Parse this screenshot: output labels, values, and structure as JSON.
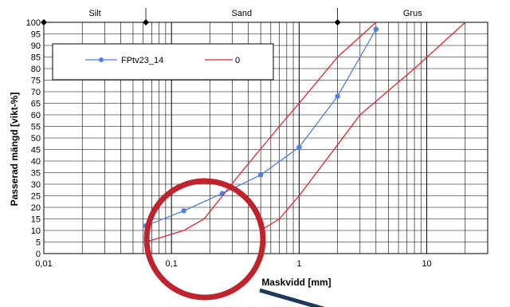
{
  "chart_data": {
    "type": "line",
    "x_scale": "log",
    "xlim": [
      0.01,
      30
    ],
    "ylim": [
      0,
      100
    ],
    "xlabel": "Maskvidd [mm]",
    "ylabel": "Passerad mängd [vikt-%]",
    "x_tick_labels": [
      {
        "value": 0.01,
        "label": "0,01"
      },
      {
        "value": 0.1,
        "label": "0,1"
      },
      {
        "value": 1,
        "label": "1"
      },
      {
        "value": 10,
        "label": "10"
      }
    ],
    "y_ticks": [
      0,
      5,
      10,
      15,
      20,
      25,
      30,
      35,
      40,
      45,
      50,
      55,
      60,
      65,
      70,
      75,
      80,
      85,
      90,
      95,
      100
    ],
    "zones": [
      {
        "label": "Silt",
        "from": 0.01,
        "to": 0.063
      },
      {
        "label": "Sand",
        "from": 0.063,
        "to": 2
      },
      {
        "label": "Grus",
        "from": 2,
        "to": 30
      }
    ],
    "grid": true,
    "legend_position": "top-left",
    "series": [
      {
        "name": "FPtv23_14",
        "color": "#4f7fe3",
        "marker": "circle",
        "points": [
          [
            0.063,
            12
          ],
          [
            0.125,
            18.5
          ],
          [
            0.25,
            26
          ],
          [
            0.5,
            34
          ],
          [
            1,
            46
          ],
          [
            2,
            68
          ],
          [
            4,
            97
          ]
        ]
      },
      {
        "name": "0",
        "color": "#e8232a",
        "marker": "none",
        "points": [
          [
            0.063,
            5
          ],
          [
            0.125,
            10
          ],
          [
            0.18,
            15
          ],
          [
            0.35,
            35
          ],
          [
            0.7,
            55
          ],
          [
            1,
            65
          ],
          [
            2,
            85
          ],
          [
            4,
            100
          ]
        ]
      },
      {
        "name": "0",
        "color": "#e8232a",
        "marker": "none",
        "points": [
          [
            0.5,
            10
          ],
          [
            0.7,
            15
          ],
          [
            1,
            25
          ],
          [
            2,
            47
          ],
          [
            3,
            60
          ],
          [
            8,
            80
          ],
          [
            20,
            100
          ]
        ]
      }
    ]
  },
  "colors": {
    "highlight_circle": "#c0232b",
    "pointer_arrow": "#1b3a5c"
  }
}
